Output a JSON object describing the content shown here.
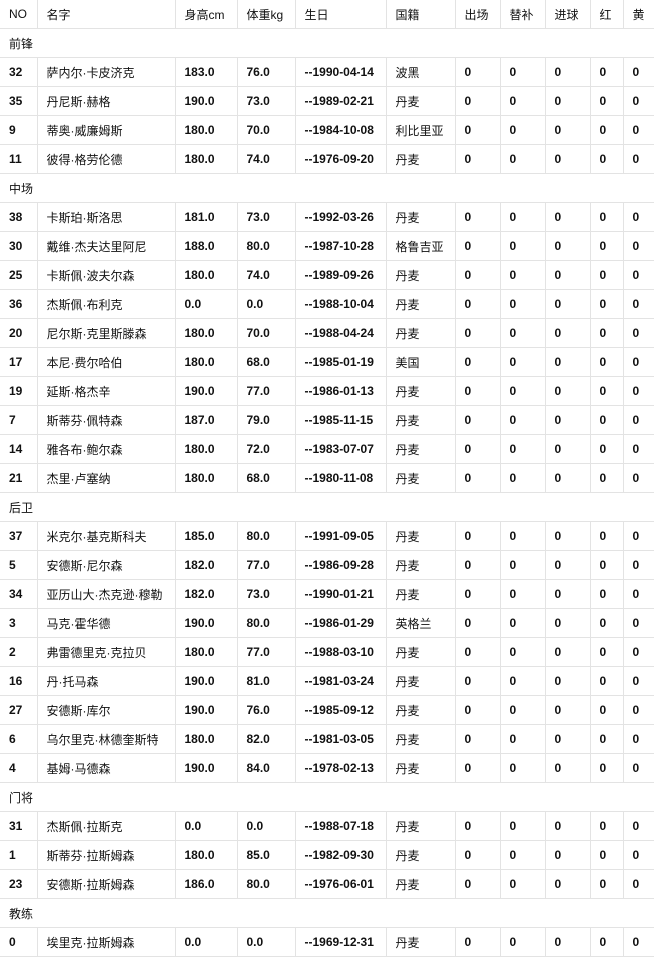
{
  "columns": [
    "NO",
    "名字",
    "身高cm",
    "体重kg",
    "生日",
    "国籍",
    "出场",
    "替补",
    "进球",
    "红",
    "黄"
  ],
  "groups": [
    {
      "label": "前锋",
      "players": [
        [
          "32",
          "萨内尔·卡皮济克",
          "183.0",
          "76.0",
          "--1990-04-14",
          "波黑",
          "0",
          "0",
          "0",
          "0",
          "0"
        ],
        [
          "35",
          "丹尼斯·赫格",
          "190.0",
          "73.0",
          "--1989-02-21",
          "丹麦",
          "0",
          "0",
          "0",
          "0",
          "0"
        ],
        [
          "9",
          "蒂奥·威廉姆斯",
          "180.0",
          "70.0",
          "--1984-10-08",
          "利比里亚",
          "0",
          "0",
          "0",
          "0",
          "0"
        ],
        [
          "11",
          "彼得·格劳伦德",
          "180.0",
          "74.0",
          "--1976-09-20",
          "丹麦",
          "0",
          "0",
          "0",
          "0",
          "0"
        ]
      ]
    },
    {
      "label": "中场",
      "players": [
        [
          "38",
          "卡斯珀·斯洛思",
          "181.0",
          "73.0",
          "--1992-03-26",
          "丹麦",
          "0",
          "0",
          "0",
          "0",
          "0"
        ],
        [
          "30",
          "戴维·杰夫达里阿尼",
          "188.0",
          "80.0",
          "--1987-10-28",
          "格鲁吉亚",
          "0",
          "0",
          "0",
          "0",
          "0"
        ],
        [
          "25",
          "卡斯佩·波夫尔森",
          "180.0",
          "74.0",
          "--1989-09-26",
          "丹麦",
          "0",
          "0",
          "0",
          "0",
          "0"
        ],
        [
          "36",
          "杰斯佩·布利克",
          "0.0",
          "0.0",
          "--1988-10-04",
          "丹麦",
          "0",
          "0",
          "0",
          "0",
          "0"
        ],
        [
          "20",
          "尼尔斯·克里斯滕森",
          "180.0",
          "70.0",
          "--1988-04-24",
          "丹麦",
          "0",
          "0",
          "0",
          "0",
          "0"
        ],
        [
          "17",
          "本尼·费尔哈伯",
          "180.0",
          "68.0",
          "--1985-01-19",
          "美国",
          "0",
          "0",
          "0",
          "0",
          "0"
        ],
        [
          "19",
          "延斯·格杰辛",
          "190.0",
          "77.0",
          "--1986-01-13",
          "丹麦",
          "0",
          "0",
          "0",
          "0",
          "0"
        ],
        [
          "7",
          "斯蒂芬·佩特森",
          "187.0",
          "79.0",
          "--1985-11-15",
          "丹麦",
          "0",
          "0",
          "0",
          "0",
          "0"
        ],
        [
          "14",
          "雅各布·鲍尔森",
          "180.0",
          "72.0",
          "--1983-07-07",
          "丹麦",
          "0",
          "0",
          "0",
          "0",
          "0"
        ],
        [
          "21",
          "杰里·卢塞纳",
          "180.0",
          "68.0",
          "--1980-11-08",
          "丹麦",
          "0",
          "0",
          "0",
          "0",
          "0"
        ]
      ]
    },
    {
      "label": "后卫",
      "players": [
        [
          "37",
          "米克尔·基克斯科夫",
          "185.0",
          "80.0",
          "--1991-09-05",
          "丹麦",
          "0",
          "0",
          "0",
          "0",
          "0"
        ],
        [
          "5",
          "安德斯·尼尔森",
          "182.0",
          "77.0",
          "--1986-09-28",
          "丹麦",
          "0",
          "0",
          "0",
          "0",
          "0"
        ],
        [
          "34",
          "亚历山大·杰克逊·穆勒",
          "182.0",
          "73.0",
          "--1990-01-21",
          "丹麦",
          "0",
          "0",
          "0",
          "0",
          "0"
        ],
        [
          "3",
          "马克·霍华德",
          "190.0",
          "80.0",
          "--1986-01-29",
          "英格兰",
          "0",
          "0",
          "0",
          "0",
          "0"
        ],
        [
          "2",
          "弗雷德里克·克拉贝",
          "180.0",
          "77.0",
          "--1988-03-10",
          "丹麦",
          "0",
          "0",
          "0",
          "0",
          "0"
        ],
        [
          "16",
          "丹·托马森",
          "190.0",
          "81.0",
          "--1981-03-24",
          "丹麦",
          "0",
          "0",
          "0",
          "0",
          "0"
        ],
        [
          "27",
          "安德斯·库尔",
          "190.0",
          "76.0",
          "--1985-09-12",
          "丹麦",
          "0",
          "0",
          "0",
          "0",
          "0"
        ],
        [
          "6",
          "乌尔里克·林德奎斯特",
          "180.0",
          "82.0",
          "--1981-03-05",
          "丹麦",
          "0",
          "0",
          "0",
          "0",
          "0"
        ],
        [
          "4",
          "基姆·马德森",
          "190.0",
          "84.0",
          "--1978-02-13",
          "丹麦",
          "0",
          "0",
          "0",
          "0",
          "0"
        ]
      ]
    },
    {
      "label": "门将",
      "players": [
        [
          "31",
          "杰斯佩·拉斯克",
          "0.0",
          "0.0",
          "--1988-07-18",
          "丹麦",
          "0",
          "0",
          "0",
          "0",
          "0"
        ],
        [
          "1",
          "斯蒂芬·拉斯姆森",
          "180.0",
          "85.0",
          "--1982-09-30",
          "丹麦",
          "0",
          "0",
          "0",
          "0",
          "0"
        ],
        [
          "23",
          "安德斯·拉斯姆森",
          "186.0",
          "80.0",
          "--1976-06-01",
          "丹麦",
          "0",
          "0",
          "0",
          "0",
          "0"
        ]
      ]
    },
    {
      "label": "教练",
      "players": [
        [
          "0",
          "埃里克·拉斯姆森",
          "0.0",
          "0.0",
          "--1969-12-31",
          "丹麦",
          "0",
          "0",
          "0",
          "0",
          "0"
        ]
      ]
    }
  ]
}
